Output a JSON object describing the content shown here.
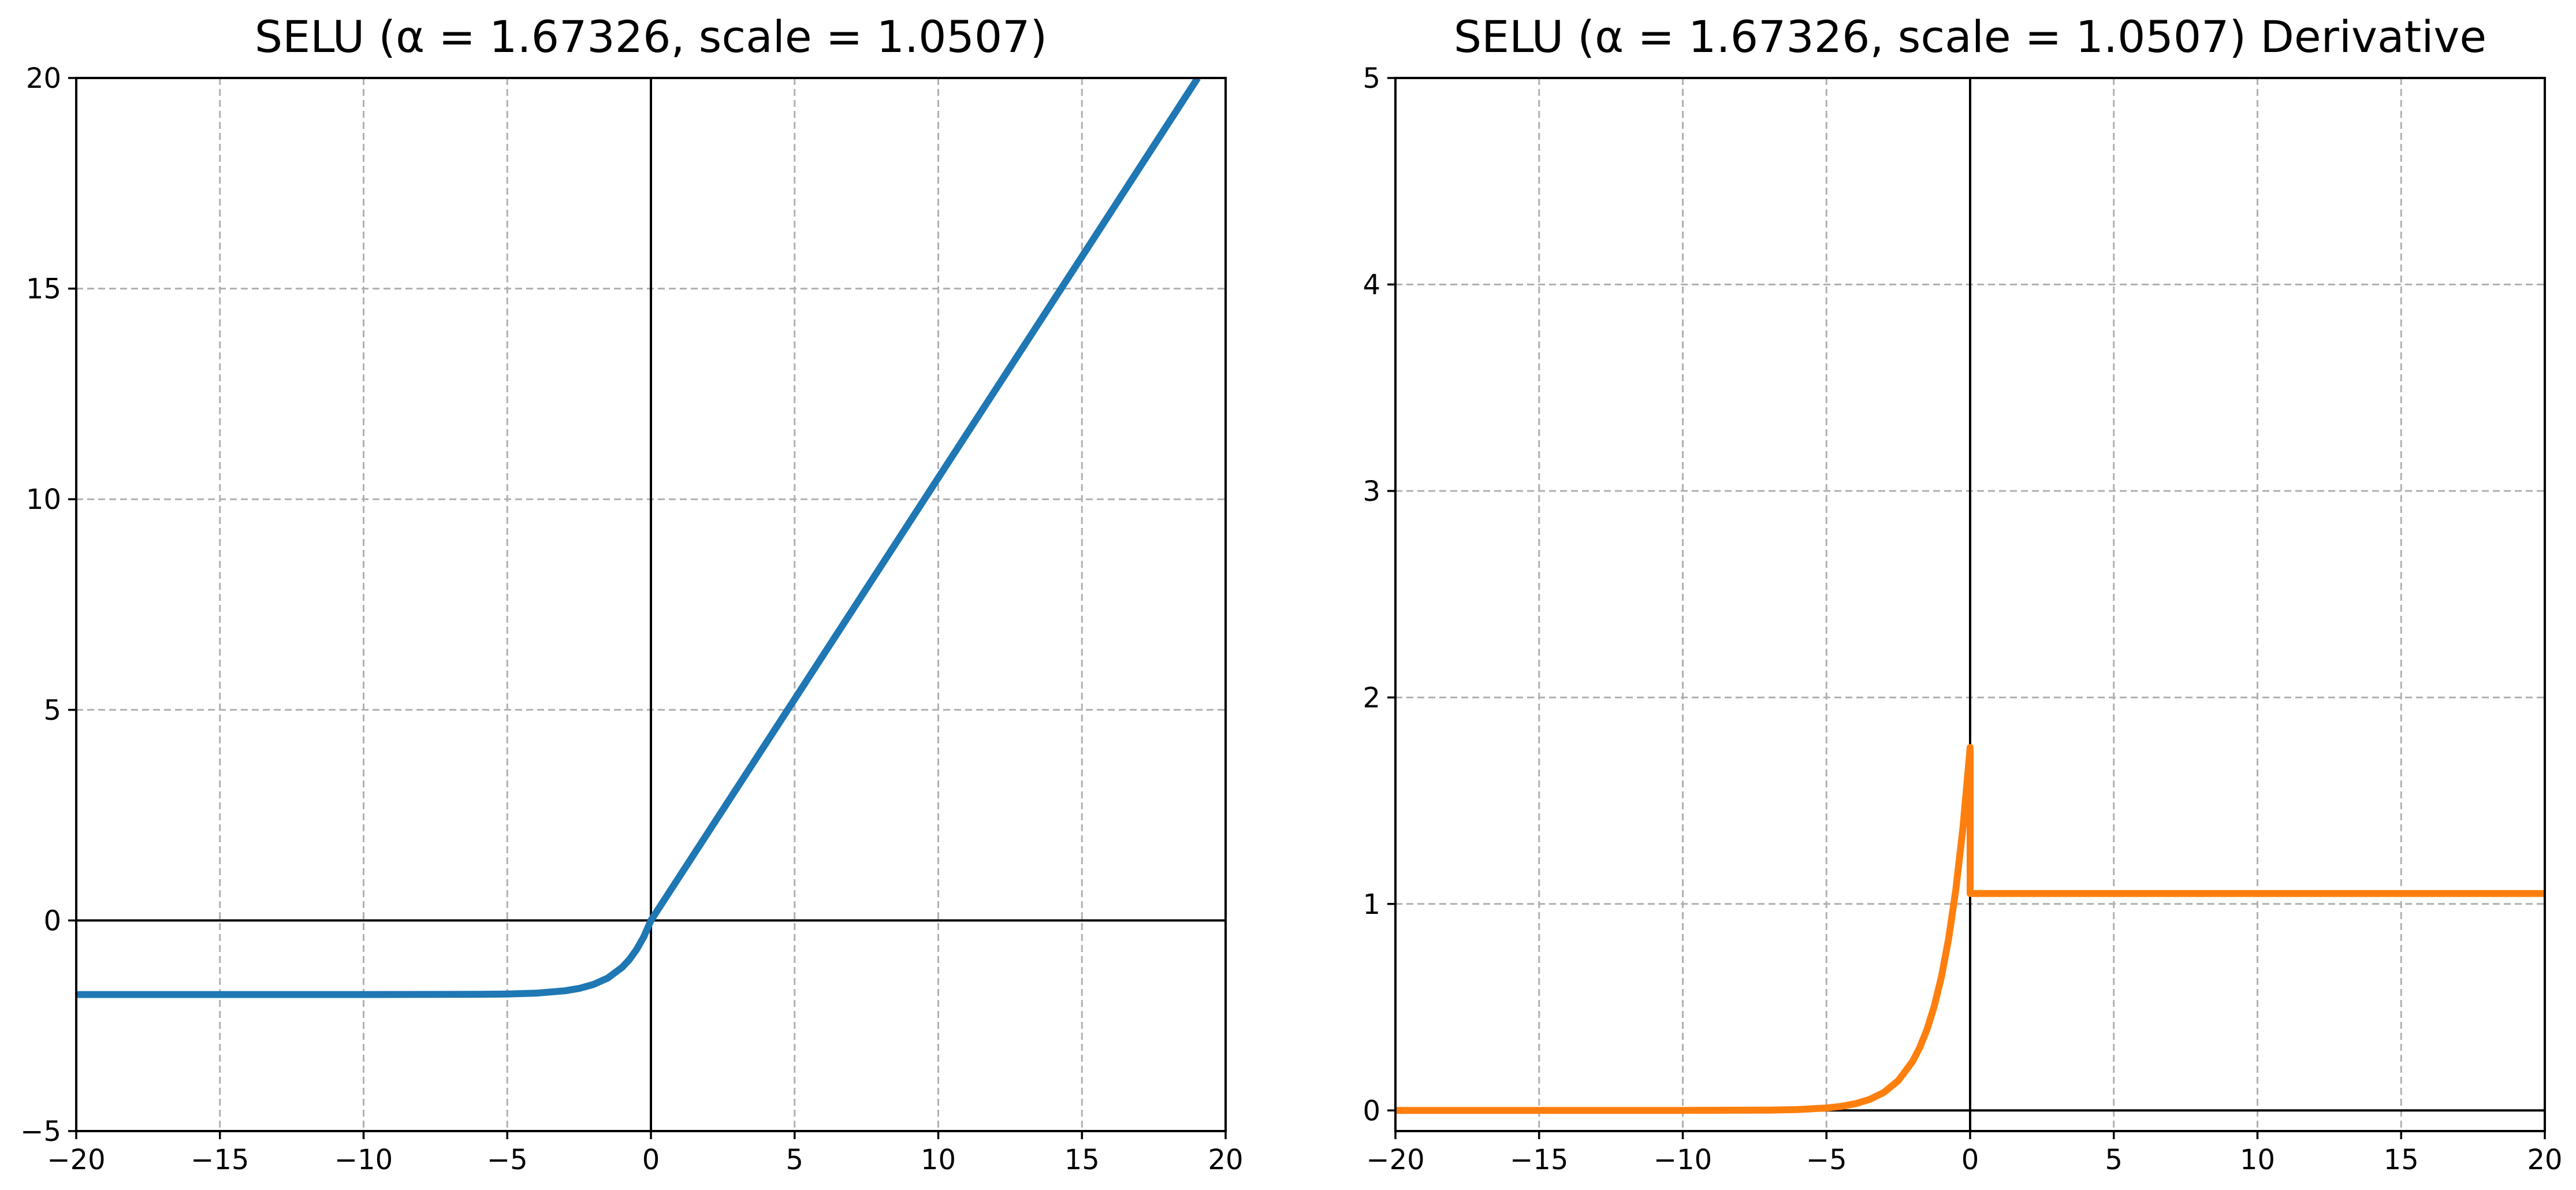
{
  "chart_data": [
    {
      "type": "line",
      "title": "SELU (α = 1.67326, scale = 1.0507)",
      "xlabel": "",
      "ylabel": "",
      "xlim": [
        -20,
        20
      ],
      "ylim": [
        -5,
        20
      ],
      "xticks": [
        -20,
        -15,
        -10,
        -5,
        0,
        5,
        10,
        15,
        20
      ],
      "yticks": [
        -5,
        0,
        5,
        10,
        15,
        20
      ],
      "xtick_labels": [
        "−20",
        "−15",
        "−10",
        "−5",
        "0",
        "5",
        "10",
        "15",
        "20"
      ],
      "ytick_labels": [
        "−5",
        "0",
        "5",
        "10",
        "15",
        "20"
      ],
      "grid": true,
      "color": "#1f77b4",
      "series": [
        {
          "x": [
            -20,
            -15,
            -10,
            -6,
            -5,
            -4,
            -3,
            -2.5,
            -2,
            -1.5,
            -1,
            -0.75,
            -0.5,
            -0.25,
            0,
            5,
            10,
            15,
            19.03
          ],
          "y": [
            -1.758,
            -1.758,
            -1.758,
            -1.754,
            -1.746,
            -1.726,
            -1.67,
            -1.614,
            -1.52,
            -1.366,
            -1.111,
            -0.928,
            -0.691,
            -0.389,
            0,
            5.254,
            10.507,
            15.761,
            20
          ]
        }
      ]
    },
    {
      "type": "line",
      "title": "SELU (α = 1.67326, scale = 1.0507) Derivative",
      "xlabel": "",
      "ylabel": "",
      "xlim": [
        -20,
        20
      ],
      "ylim": [
        -0.1,
        5
      ],
      "xticks": [
        -20,
        -15,
        -10,
        -5,
        0,
        5,
        10,
        15,
        20
      ],
      "yticks": [
        0,
        1,
        2,
        3,
        4,
        5
      ],
      "xtick_labels": [
        "−20",
        "−15",
        "−10",
        "−5",
        "0",
        "5",
        "10",
        "15",
        "20"
      ],
      "ytick_labels": [
        "0",
        "1",
        "2",
        "3",
        "4",
        "5"
      ],
      "grid": true,
      "color": "#ff7f0e",
      "series": [
        {
          "x": [
            -20,
            -10,
            -7,
            -6,
            -5,
            -4.5,
            -4,
            -3.5,
            -3,
            -2.5,
            -2,
            -1.75,
            -1.5,
            -1.25,
            -1,
            -0.75,
            -0.5,
            -0.25,
            -0.01,
            0,
            0,
            20
          ],
          "y": [
            0,
            8e-05,
            0.0016,
            0.0044,
            0.0118,
            0.0195,
            0.0322,
            0.0531,
            0.0875,
            0.1443,
            0.2379,
            0.3055,
            0.3923,
            0.5037,
            0.6468,
            0.8305,
            1.0664,
            1.3693,
            1.7407,
            1.7581,
            1.0507,
            1.0507
          ]
        }
      ]
    }
  ]
}
